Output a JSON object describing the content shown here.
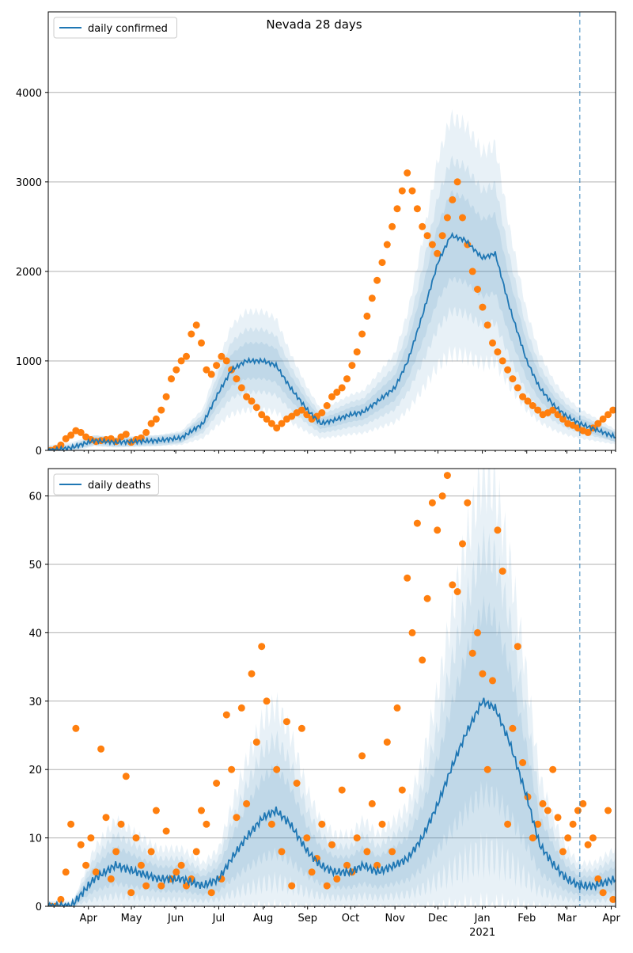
{
  "title": "Nevada 28 days",
  "colors": {
    "line": "#1f77b4",
    "points": "#ff7f0e",
    "band": "#1f77b4",
    "grid": "#b0b0b0",
    "vline": "#1f77b4"
  },
  "x_axis": {
    "month_ticks": [
      "Apr",
      "May",
      "Jun",
      "Jul",
      "Aug",
      "Sep",
      "Oct",
      "Nov",
      "Dec",
      "Jan",
      "Feb",
      "Mar",
      "Apr"
    ],
    "year_label": "2021",
    "range": [
      "2020-03-04",
      "2021-04-04"
    ],
    "marker_date": "2021-03-10"
  },
  "chart_data": [
    {
      "type": "line",
      "title": "Nevada 28 days",
      "legend": "daily confirmed",
      "legend_position": "top-left",
      "grid": true,
      "ylim": [
        0,
        4900
      ],
      "yticks": [
        0,
        1000,
        2000,
        3000,
        4000
      ],
      "x_dates": [
        "2020-03-05",
        "2020-03-20",
        "2020-04-05",
        "2020-04-20",
        "2020-05-05",
        "2020-05-20",
        "2020-06-05",
        "2020-06-20",
        "2020-07-01",
        "2020-07-10",
        "2020-07-20",
        "2020-08-01",
        "2020-08-10",
        "2020-08-20",
        "2020-09-01",
        "2020-09-10",
        "2020-09-20",
        "2020-10-01",
        "2020-10-10",
        "2020-10-20",
        "2020-11-01",
        "2020-11-10",
        "2020-11-20",
        "2020-12-01",
        "2020-12-10",
        "2020-12-20",
        "2021-01-01",
        "2021-01-10",
        "2021-01-20",
        "2021-02-01",
        "2021-02-10",
        "2021-02-20",
        "2021-03-01",
        "2021-03-10",
        "2021-03-20",
        "2021-04-04"
      ],
      "series": [
        {
          "name": "daily confirmed",
          "values": [
            0,
            30,
            110,
            90,
            100,
            110,
            140,
            300,
            650,
            900,
            1000,
            1000,
            950,
            700,
            450,
            300,
            340,
            400,
            430,
            550,
            700,
            1000,
            1500,
            2100,
            2400,
            2350,
            2150,
            2200,
            1600,
            1000,
            700,
            500,
            380,
            300,
            240,
            150
          ]
        }
      ],
      "band_width_fraction": [
        0.2,
        0.35,
        0.55
      ],
      "scatter_values": [
        0,
        20,
        60,
        130,
        170,
        220,
        200,
        150,
        120,
        100,
        110,
        120,
        130,
        100,
        150,
        180,
        90,
        120,
        140,
        200,
        300,
        350,
        450,
        600,
        800,
        900,
        1000,
        1050,
        1300,
        1400,
        1200,
        900,
        850,
        950,
        1050,
        1000,
        900,
        800,
        700,
        600,
        550,
        480,
        400,
        350,
        300,
        250,
        300,
        350,
        380,
        420,
        450,
        400,
        350,
        380,
        420,
        500,
        600,
        650,
        700,
        800,
        950,
        1100,
        1300,
        1500,
        1700,
        1900,
        2100,
        2300,
        2500,
        2700,
        2900,
        3100,
        2900,
        2700,
        2500,
        2400,
        2300,
        2200,
        2400,
        2600,
        2800,
        3000,
        2600,
        2300,
        2000,
        1800,
        1600,
        1400,
        1200,
        1100,
        1000,
        900,
        800,
        700,
        600,
        550,
        500,
        450,
        400,
        420,
        450,
        400,
        350,
        300,
        280,
        250,
        220,
        200,
        250,
        300,
        350,
        400,
        450
      ]
    },
    {
      "type": "line",
      "legend": "daily deaths",
      "legend_position": "top-left",
      "grid": true,
      "ylim": [
        0,
        64
      ],
      "yticks": [
        0,
        10,
        20,
        30,
        40,
        50,
        60
      ],
      "x_dates": [
        "2020-03-05",
        "2020-03-20",
        "2020-04-05",
        "2020-04-20",
        "2020-05-05",
        "2020-05-20",
        "2020-06-05",
        "2020-06-20",
        "2020-07-01",
        "2020-07-10",
        "2020-07-20",
        "2020-08-01",
        "2020-08-10",
        "2020-08-20",
        "2020-09-01",
        "2020-09-10",
        "2020-09-20",
        "2020-10-01",
        "2020-10-10",
        "2020-10-20",
        "2020-11-01",
        "2020-11-10",
        "2020-11-20",
        "2020-12-01",
        "2020-12-10",
        "2020-12-20",
        "2021-01-01",
        "2021-01-10",
        "2021-01-20",
        "2021-02-01",
        "2021-02-10",
        "2021-02-20",
        "2021-03-01",
        "2021-03-10",
        "2021-03-20",
        "2021-04-04"
      ],
      "series": [
        {
          "name": "daily deaths",
          "values": [
            0,
            0,
            4,
            6,
            5,
            4,
            4,
            3,
            4,
            7,
            10,
            13,
            14,
            12,
            8,
            6,
            5,
            5,
            6,
            5,
            6,
            7,
            10,
            15,
            20,
            25,
            30,
            29,
            24,
            16,
            9,
            6,
            4,
            3,
            3,
            4
          ]
        }
      ],
      "band_width_fraction": [
        0.45,
        0.75,
        1.1
      ],
      "scatter_values": [
        0,
        0,
        1,
        5,
        12,
        26,
        9,
        6,
        10,
        5,
        23,
        13,
        4,
        8,
        12,
        19,
        2,
        10,
        6,
        3,
        8,
        14,
        3,
        11,
        4,
        5,
        6,
        3,
        4,
        8,
        14,
        12,
        2,
        18,
        4,
        28,
        20,
        13,
        29,
        15,
        34,
        24,
        38,
        30,
        12,
        20,
        8,
        27,
        3,
        18,
        26,
        10,
        5,
        7,
        12,
        3,
        9,
        4,
        17,
        6,
        5,
        10,
        22,
        8,
        15,
        6,
        12,
        24,
        8,
        29,
        17,
        48,
        40,
        56,
        36,
        45,
        59,
        55,
        60,
        63,
        47,
        46,
        53,
        59,
        37,
        40,
        34,
        20,
        33,
        55,
        49,
        12,
        26,
        38,
        21,
        16,
        10,
        12,
        15,
        14,
        20,
        13,
        8,
        10,
        12,
        14,
        15,
        9,
        10,
        4,
        2,
        14,
        1
      ]
    }
  ]
}
